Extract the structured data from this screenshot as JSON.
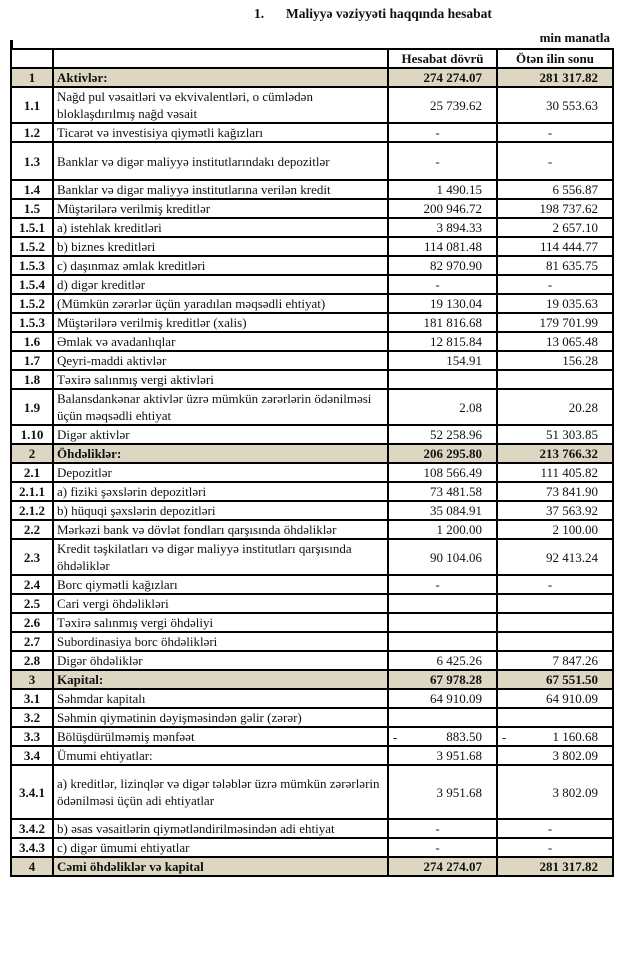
{
  "title": {
    "number": "1.",
    "text": "Maliyyə vəziyyəti haqqında hesabat"
  },
  "unit": "min manatla",
  "columns": {
    "current": "Hesabat dövrü",
    "previous": "Ötən ilin sonu"
  },
  "rows": [
    {
      "num": "1",
      "label": "Aktivlər:",
      "cur": "274 274.07",
      "prev": "281 317.82",
      "shaded": true
    },
    {
      "num": "1.1",
      "label": "Nağd pul vəsaitləri və  ekvivalentləri, o cümlədən bloklaşdırılmış nağd vəsait",
      "cur": "25 739.62",
      "prev": "30 553.63",
      "size": "dbl"
    },
    {
      "num": "1.2",
      "label": "Ticarət və investisiya qiymətli kağızları",
      "cur": "-",
      "prev": "-"
    },
    {
      "num": "1.3",
      "label": "Banklar və digər maliyyə institutlarındakı depozitlər",
      "cur": "-",
      "prev": "-",
      "size": "tall"
    },
    {
      "num": "1.4",
      "label": "Banklar və digər maliyyə institutlarına verilən kredit",
      "cur": "1 490.15",
      "prev": "6 556.87"
    },
    {
      "num": "1.5",
      "label": "Müştərilərə verilmiş kreditlər",
      "cur": "200 946.72",
      "prev": "198 737.62"
    },
    {
      "num": "1.5.1",
      "label": "a) istehlak kreditləri",
      "cur": "3 894.33",
      "prev": "2 657.10"
    },
    {
      "num": "1.5.2",
      "label": "b) biznes kreditləri",
      "cur": "114 081.48",
      "prev": "114 444.77"
    },
    {
      "num": "1.5.3",
      "label": "c) daşınmaz əmlak kreditləri",
      "cur": "82 970.90",
      "prev": "81 635.75"
    },
    {
      "num": "1.5.4",
      "label": "d) digər kreditlər",
      "cur": "-",
      "prev": "-"
    },
    {
      "num": "1.5.2",
      "label": "(Mümkün zərərlər üçün yaradılan məqsədli ehtiyat)",
      "cur": "19 130.04",
      "prev": "19 035.63"
    },
    {
      "num": "1.5.3",
      "label": "Müştərilərə verilmiş kreditlər (xalis)",
      "cur": "181 816.68",
      "prev": "179 701.99"
    },
    {
      "num": "1.6",
      "label": "Əmlak və avadanlıqlar",
      "cur": "12 815.84",
      "prev": "13 065.48"
    },
    {
      "num": "1.7",
      "label": "Qeyri-maddi aktivlər",
      "cur": "154.91",
      "prev": "156.28"
    },
    {
      "num": "1.8",
      "label": "Təxirə salınmış vergi aktivləri",
      "cur": "",
      "prev": ""
    },
    {
      "num": "1.9",
      "label": "Balansdankənar aktivlər üzrə mümkün zərərlərin ödənilməsi üçün məqsədli ehtiyat",
      "cur": "2.08",
      "prev": "20.28",
      "size": "dbl"
    },
    {
      "num": "1.10",
      "label": "Digər aktivlər",
      "cur": "52 258.96",
      "prev": "51 303.85"
    },
    {
      "num": "2",
      "label": "Öhdəliklər:",
      "cur": "206 295.80",
      "prev": "213 766.32",
      "shaded": true
    },
    {
      "num": "2.1",
      "label": "Depozitlər",
      "cur": "108 566.49",
      "prev": "111 405.82"
    },
    {
      "num": "2.1.1",
      "label": "a) fiziki şəxslərin depozitləri",
      "cur": "73 481.58",
      "prev": "73 841.90"
    },
    {
      "num": "2.1.2",
      "label": "b) hüquqi şəxslərin depozitləri",
      "cur": "35 084.91",
      "prev": "37 563.92"
    },
    {
      "num": "2.2",
      "label": "Mərkəzi bank və dövlət fondları qarşısında öhdəliklər",
      "cur": "1 200.00",
      "prev": "2 100.00"
    },
    {
      "num": "2.3",
      "label": "Kredit təşkilatları və digər maliyyə institutları qarşısında öhdəliklər",
      "cur": "90 104.06",
      "prev": "92 413.24",
      "size": "dbl"
    },
    {
      "num": "2.4",
      "label": "Borc qiymətli kağızları",
      "cur": "-",
      "prev": "-"
    },
    {
      "num": "2.5",
      "label": "Cari vergi öhdəlikləri",
      "cur": "",
      "prev": ""
    },
    {
      "num": "2.6",
      "label": "Təxirə salınmış vergi öhdəliyi",
      "cur": "",
      "prev": ""
    },
    {
      "num": "2.7",
      "label": "Subordinasiya borc öhdəlikləri",
      "cur": "",
      "prev": ""
    },
    {
      "num": "2.8",
      "label": "Digər öhdəliklər",
      "cur": "6 425.26",
      "prev": "7 847.26"
    },
    {
      "num": "3",
      "label": "Kapital:",
      "cur": "67 978.28",
      "prev": "67 551.50",
      "shaded": true
    },
    {
      "num": "3.1",
      "label": "Səhmdar kapitalı",
      "cur": "64 910.09",
      "prev": "64 910.09"
    },
    {
      "num": "3.2",
      "label": "Səhmin qiymətinin dəyişməsindən gəlir (zərər)",
      "cur": "",
      "prev": ""
    },
    {
      "num": "3.3",
      "label": "Bölüşdürülməmiş mənfəət",
      "cur": "883.50",
      "prev": "1 160.68",
      "cur_sign": "-",
      "prev_sign": "-"
    },
    {
      "num": "3.4",
      "label": "Ümumi ehtiyatlar:",
      "cur": "3 951.68",
      "prev": "3 802.09"
    },
    {
      "num": "3.4.1",
      "label": "a) kreditlər, lizinqlər və digər tələblər üzrə mümkün zərərlərin ödənilməsi üçün adi ehtiyatlar",
      "cur": "3 951.68",
      "prev": "3 802.09",
      "size": "xl"
    },
    {
      "num": "3.4.2",
      "label": "b) əsas vəsaitlərin qiymətləndirilməsindən adi ehtiyat",
      "cur": "-",
      "prev": "-"
    },
    {
      "num": "3.4.3",
      "label": "c) digər ümumi ehtiyatlar",
      "cur": "-",
      "prev": "-"
    },
    {
      "num": "4",
      "label": "Cəmi öhdəliklər və kapital",
      "cur": "274 274.07",
      "prev": "281 317.82",
      "shaded": true
    }
  ]
}
